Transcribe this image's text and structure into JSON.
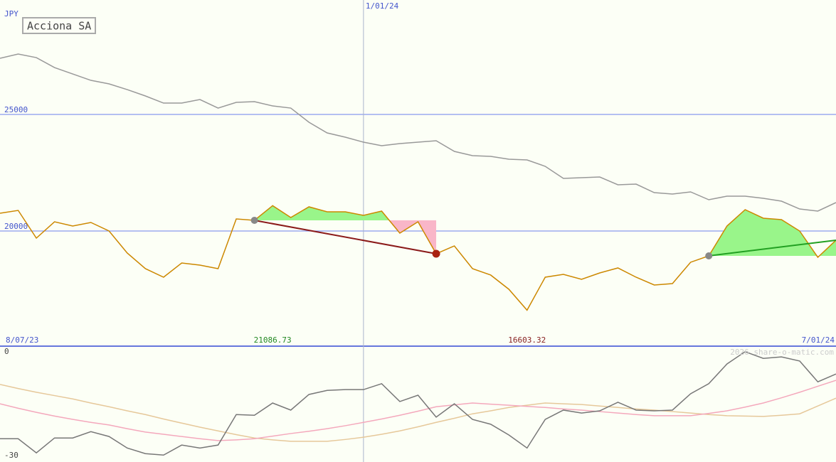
{
  "chart_data": [
    {
      "type": "line",
      "y_label": "JPY",
      "xlim": [
        0,
        46
      ],
      "xticks": [
        {
          "value": 0,
          "label": "8/07/23"
        },
        {
          "value": 20,
          "label": "1/01/24"
        },
        {
          "value": 46,
          "label": "7/01/24"
        }
      ],
      "ylim": [
        15060,
        29910
      ],
      "yticks": [
        20000,
        25000
      ],
      "grid": true,
      "series": [
        {
          "name": "Acciona SA",
          "color": "#cc8800",
          "values": [
            20762,
            20884,
            19695,
            20396,
            20213,
            20366,
            20000,
            19055,
            18384,
            18018,
            18628,
            18537,
            18384,
            20518,
            20457,
            21087,
            20579,
            21037,
            20823,
            20823,
            20671,
            20854,
            19909,
            20396,
            19024,
            19360,
            18384,
            18110,
            17500,
            16603,
            18018,
            18140,
            17927,
            18201,
            18415,
            18018,
            17683,
            17744,
            18659,
            18933,
            20213,
            20915,
            20549,
            20488,
            20000,
            18872,
            19604
          ]
        },
        {
          "color": "#999999",
          "values": [
            27409,
            27592,
            27439,
            27012,
            26738,
            26463,
            26311,
            26067,
            25793,
            25488,
            25488,
            25640,
            25274,
            25518,
            25549,
            25366,
            25274,
            24665,
            24207,
            24024,
            23811,
            23659,
            23750,
            23811,
            23872,
            23415,
            23232,
            23201,
            23079,
            23049,
            22774,
            22256,
            22287,
            22317,
            21982,
            22012,
            21646,
            21585,
            21677,
            21341,
            21494,
            21494,
            21402,
            21280,
            20945,
            20854,
            21220
          ]
        }
      ],
      "annotations": [
        {
          "x": 15,
          "value": 21086.73,
          "color": "#228822"
        },
        {
          "x": 29,
          "value": 16603.32,
          "color": "#882222"
        }
      ],
      "signals": [
        {
          "x": [
            14,
            24
          ],
          "color": "#8b1a1a"
        },
        {
          "x": [
            39,
            46
          ],
          "color": "#22a022"
        }
      ]
    },
    {
      "type": "line",
      "xlim": [
        0,
        46
      ],
      "ylim": [
        -30,
        0
      ],
      "yticks": [
        -30,
        0
      ],
      "grid": false,
      "series": [
        {
          "color": "#777777",
          "values": [
            -24.7,
            -24.7,
            -28.5,
            -24.5,
            -24.5,
            -22.8,
            -24.1,
            -27.2,
            -28.7,
            -29.1,
            -26.4,
            -27.2,
            -26.4,
            -18.2,
            -18.4,
            -15.1,
            -17.0,
            -12.8,
            -11.7,
            -11.5,
            -11.5,
            -9.9,
            -14.7,
            -13.0,
            -18.9,
            -15.3,
            -19.5,
            -20.8,
            -23.7,
            -27.2,
            -19.5,
            -17.0,
            -17.8,
            -17.2,
            -14.9,
            -17.0,
            -17.2,
            -17.0,
            -12.6,
            -9.9,
            -4.6,
            -1.3,
            -3.1,
            -2.7,
            -3.8,
            -9.4,
            -7.3
          ]
        },
        {
          "color": "#f4a8bc",
          "values": [
            -15.3,
            -16.5,
            -17.6,
            -18.6,
            -19.5,
            -20.3,
            -21.0,
            -22.0,
            -22.9,
            -23.5,
            -24.1,
            -24.7,
            -25.2,
            -25.0,
            -24.7,
            -24.0,
            -23.3,
            -22.7,
            -22.0,
            -21.2,
            -20.3,
            -19.4,
            -18.4,
            -17.3,
            -16.1,
            -15.6,
            -15.1,
            -15.4,
            -15.7,
            -16.0,
            -16.3,
            -16.7,
            -17.0,
            -17.4,
            -17.8,
            -18.2,
            -18.5,
            -18.5,
            -18.5,
            -17.9,
            -17.2,
            -16.2,
            -15.1,
            -13.7,
            -12.2,
            -10.6,
            -9.0
          ]
        },
        {
          "color": "#e6c89a",
          "values": [
            -10.1,
            -11.2,
            -12.2,
            -13.1,
            -14.0,
            -15.1,
            -16.1,
            -17.2,
            -18.2,
            -19.4,
            -20.5,
            -21.6,
            -22.6,
            -23.6,
            -24.5,
            -25.0,
            -25.4,
            -25.4,
            -25.4,
            -24.9,
            -24.3,
            -23.5,
            -22.6,
            -21.5,
            -20.3,
            -19.2,
            -18.0,
            -17.2,
            -16.3,
            -15.7,
            -15.1,
            -15.3,
            -15.5,
            -15.9,
            -16.3,
            -16.7,
            -17.0,
            -17.4,
            -17.8,
            -18.2,
            -18.5,
            -18.6,
            -18.7,
            -18.4,
            -18.0,
            -15.9,
            -13.8
          ]
        }
      ]
    }
  ],
  "watermark": "2026 share-o-matic.com"
}
